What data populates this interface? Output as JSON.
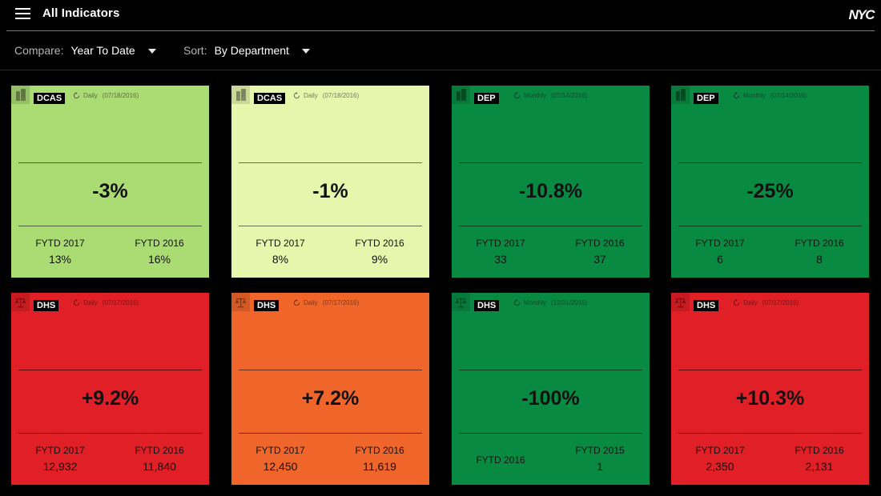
{
  "header": {
    "title": "All Indicators",
    "logo": "NYC"
  },
  "filters": {
    "compare": {
      "label": "Compare:",
      "value": "Year To Date"
    },
    "sort": {
      "label": "Sort:",
      "value": "By Department"
    }
  },
  "colors": {
    "light-green": "#abdb73",
    "pale-green": "#e7f6ad",
    "green": "#088a42",
    "red": "#e11f26",
    "orange": "#f0662a"
  },
  "cards": [
    {
      "dept": "DCAS",
      "icon": "building-icon",
      "frequency": "Daily",
      "date": "(07/18/2016)",
      "percent": "-3%",
      "color": "#abdb73",
      "left": {
        "label": "FYTD 2017",
        "value": "13%"
      },
      "right": {
        "label": "FYTD 2016",
        "value": "16%"
      }
    },
    {
      "dept": "DCAS",
      "icon": "building-icon",
      "frequency": "Daily",
      "date": "(07/18/2016)",
      "percent": "-1%",
      "color": "#e7f6ad",
      "left": {
        "label": "FYTD 2017",
        "value": "8%"
      },
      "right": {
        "label": "FYTD 2016",
        "value": "9%"
      }
    },
    {
      "dept": "DEP",
      "icon": "building-icon",
      "frequency": "Monthly",
      "date": "(07/14/2016)",
      "percent": "-10.8%",
      "color": "#088a42",
      "left": {
        "label": "FYTD 2017",
        "value": "33"
      },
      "right": {
        "label": "FYTD 2016",
        "value": "37"
      }
    },
    {
      "dept": "DEP",
      "icon": "building-icon",
      "frequency": "Monthly",
      "date": "(07/14/2016)",
      "percent": "-25%",
      "color": "#088a42",
      "left": {
        "label": "FYTD 2017",
        "value": "6"
      },
      "right": {
        "label": "FYTD 2016",
        "value": "8"
      }
    },
    {
      "dept": "DHS",
      "icon": "scales-icon",
      "frequency": "Daily",
      "date": "(07/17/2016)",
      "percent": "+9.2%",
      "color": "#e11f26",
      "left": {
        "label": "FYTD 2017",
        "value": "12,932"
      },
      "right": {
        "label": "FYTD 2016",
        "value": "11,840"
      }
    },
    {
      "dept": "DHS",
      "icon": "scales-icon",
      "frequency": "Daily",
      "date": "(07/17/2016)",
      "percent": "+7.2%",
      "color": "#f0662a",
      "left": {
        "label": "FYTD 2017",
        "value": "12,450"
      },
      "right": {
        "label": "FYTD 2016",
        "value": "11,619"
      }
    },
    {
      "dept": "DHS",
      "icon": "scales-icon",
      "frequency": "Monthly",
      "date": "(12/31/2015)",
      "percent": "-100%",
      "color": "#088a42",
      "left": {
        "label": "FYTD 2016",
        "value": ""
      },
      "right": {
        "label": "FYTD 2015",
        "value": "1"
      }
    },
    {
      "dept": "DHS",
      "icon": "scales-icon",
      "frequency": "Daily",
      "date": "(07/17/2016)",
      "percent": "+10.3%",
      "color": "#e11f26",
      "left": {
        "label": "FYTD 2017",
        "value": "2,350"
      },
      "right": {
        "label": "FYTD 2016",
        "value": "2,131"
      }
    }
  ]
}
